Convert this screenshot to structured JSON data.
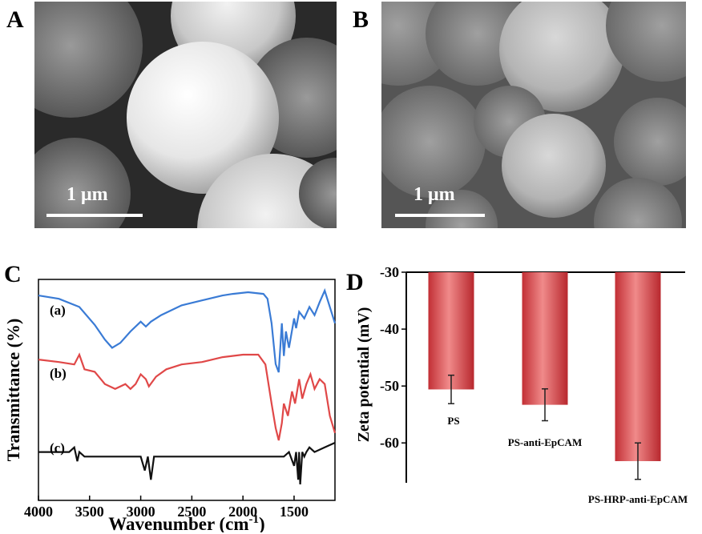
{
  "panels": {
    "a": {
      "letter": "A",
      "scale_label": "1 μm"
    },
    "b": {
      "letter": "B",
      "scale_label": "1 μm"
    },
    "c": {
      "letter": "C"
    },
    "d": {
      "letter": "D"
    }
  },
  "chart_data": [
    {
      "panel": "C",
      "type": "line",
      "xlabel": "Wavenumber (cm-1)",
      "xlabel_main": "Wavenumber (cm",
      "xlabel_sup": "-1",
      "xlabel_close": ")",
      "ylabel": "Transmittance (%)",
      "xlim": [
        4000,
        1100
      ],
      "x_reversed": true,
      "xticks": [
        "4000",
        "3500",
        "3000",
        "2500",
        "2000",
        "1500"
      ],
      "xtick_values": [
        4000,
        3500,
        3000,
        2500,
        2000,
        1500
      ],
      "y_ticks_shown": false,
      "series": [
        {
          "name": "(a)",
          "color": "#3a7bd5",
          "x": [
            4000,
            3800,
            3600,
            3450,
            3350,
            3280,
            3200,
            3100,
            3000,
            2950,
            2900,
            2800,
            2600,
            2400,
            2200,
            2100,
            1950,
            1800,
            1760,
            1720,
            1680,
            1650,
            1620,
            1600,
            1580,
            1550,
            1500,
            1480,
            1450,
            1400,
            1350,
            1300,
            1250,
            1200,
            1150,
            1100
          ],
          "y": [
            62,
            60,
            55,
            44,
            35,
            30,
            33,
            40,
            46,
            43,
            46,
            50,
            56,
            59,
            62,
            63,
            64,
            63,
            60,
            45,
            20,
            15,
            45,
            25,
            40,
            30,
            48,
            42,
            52,
            48,
            55,
            50,
            58,
            65,
            55,
            45
          ]
        },
        {
          "name": "(b)",
          "color": "#e04848",
          "x": [
            4000,
            3800,
            3650,
            3600,
            3550,
            3450,
            3350,
            3250,
            3150,
            3100,
            3050,
            3000,
            2950,
            2920,
            2850,
            2750,
            2600,
            2400,
            2200,
            2000,
            1850,
            1780,
            1720,
            1680,
            1650,
            1620,
            1600,
            1560,
            1520,
            1490,
            1450,
            1420,
            1380,
            1340,
            1300,
            1250,
            1200,
            1150,
            1100
          ],
          "y": [
            38,
            37,
            36,
            40,
            34,
            33,
            28,
            26,
            28,
            26,
            28,
            32,
            30,
            27,
            31,
            34,
            36,
            37,
            39,
            40,
            40,
            36,
            20,
            10,
            5,
            12,
            20,
            15,
            25,
            20,
            30,
            22,
            28,
            32,
            26,
            30,
            28,
            15,
            8
          ]
        },
        {
          "name": "(c)",
          "color": "#111111",
          "x": [
            4000,
            3700,
            3650,
            3620,
            3600,
            3550,
            3400,
            3200,
            3000,
            2960,
            2930,
            2900,
            2870,
            2800,
            2600,
            2400,
            2200,
            2000,
            1800,
            1600,
            1550,
            1500,
            1480,
            1460,
            1450,
            1440,
            1420,
            1400,
            1380,
            1350,
            1300,
            1200,
            1100
          ],
          "y": [
            3,
            3,
            4,
            1,
            3,
            2,
            2,
            2,
            2,
            -1,
            2,
            -3,
            2,
            2,
            2,
            2,
            2,
            2,
            2,
            2,
            3,
            0,
            3,
            -3,
            3,
            -4,
            3,
            2,
            3,
            4,
            3,
            4,
            5
          ]
        }
      ]
    },
    {
      "panel": "D",
      "type": "bar",
      "ylabel": "Zeta potential (mV)",
      "ylim": [
        -67,
        -30
      ],
      "yticks": [
        "-30",
        "-40",
        "-50",
        "-60"
      ],
      "ytick_values": [
        -30,
        -40,
        -50,
        -60
      ],
      "categories": [
        "PS",
        "PS-anti-EpCAM",
        "PS-HRP-anti-EpCAM"
      ],
      "values": [
        -50.6,
        -53.3,
        -63.2
      ],
      "errors": [
        2.5,
        2.8,
        3.2
      ],
      "bar_color": "#d63a3f",
      "bar_highlight": "#f08a8a"
    }
  ]
}
